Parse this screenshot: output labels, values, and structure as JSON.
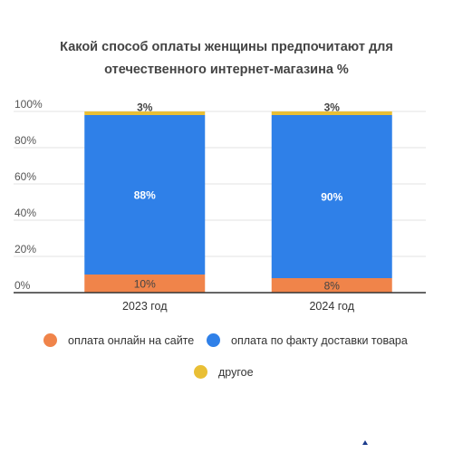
{
  "chart_data": {
    "type": "bar",
    "stacked": true,
    "title_lines": [
      "Какой способ оплаты женщины предпочитают для",
      "отечественного интернет-магазина %"
    ],
    "categories": [
      "2023 год",
      "2024 год"
    ],
    "series": [
      {
        "name": "оплата онлайн на сайте",
        "color": "#f0844a",
        "values": [
          10,
          8
        ],
        "labels": [
          "10%",
          "8%"
        ],
        "label_color": "#444444"
      },
      {
        "name": "оплата по факту доставки товара",
        "color": "#2f80e8",
        "values": [
          88,
          90
        ],
        "labels": [
          "88%",
          "90%"
        ],
        "label_color": "#ffffff"
      },
      {
        "name": "другое",
        "color": "#e9bf35",
        "values": [
          3,
          3
        ],
        "labels": [
          "3%",
          "3%"
        ],
        "label_color": "#444444"
      }
    ],
    "y_ticks": [
      "0%",
      "20%",
      "40%",
      "60%",
      "80%",
      "100%"
    ],
    "ylim": [
      0,
      100
    ],
    "grid": true,
    "legend_position": "bottom"
  }
}
